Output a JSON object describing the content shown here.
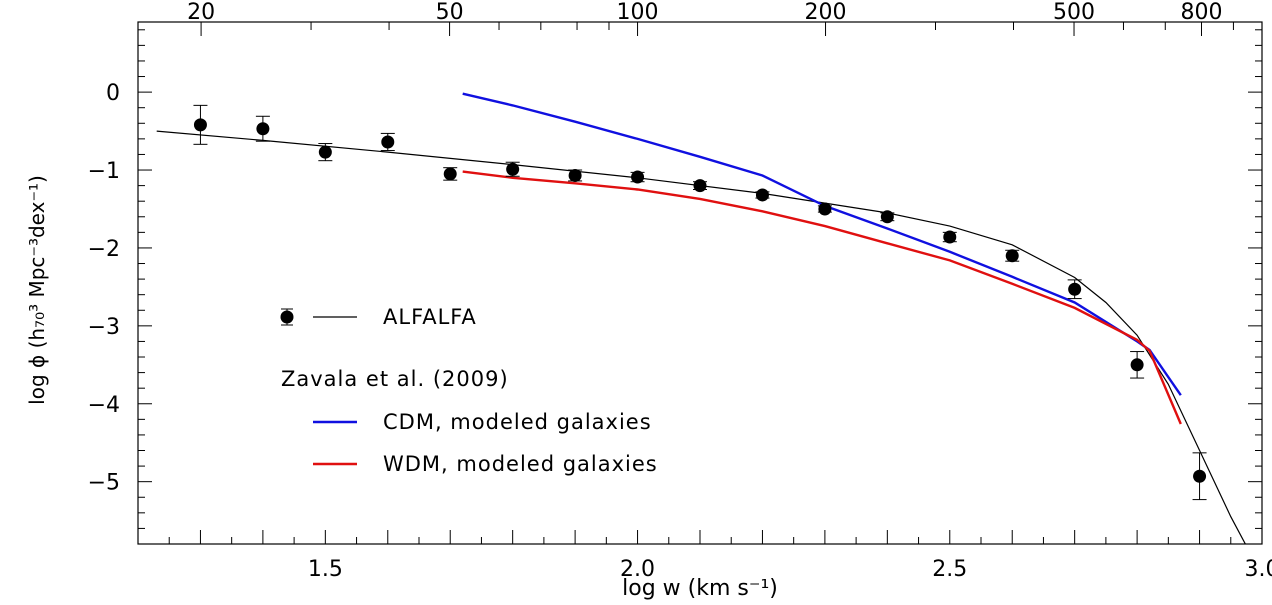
{
  "chart_data": {
    "type": "scatter",
    "title": "",
    "xlabel": "log w (km s⁻¹)",
    "ylabel": "log ϕ (h₇₀³ Mpc⁻³dex⁻¹)",
    "xlim": [
      1.2,
      3.0
    ],
    "ylim": [
      -5.8,
      0.9
    ],
    "x_ticks": [
      1.5,
      2.0,
      2.5,
      3.0
    ],
    "x_tick_labels": [
      "1.5",
      "2.0",
      "2.5",
      "3.0"
    ],
    "y_ticks": [
      0,
      -1,
      -2,
      -3,
      -4,
      -5
    ],
    "y_tick_labels": [
      "0",
      "−1",
      "−2",
      "−3",
      "−4",
      "−5"
    ],
    "top_axis": {
      "values": [
        20,
        50,
        100,
        200,
        500,
        800
      ],
      "labels": [
        "20",
        "50",
        "100",
        "200",
        "500",
        "800"
      ]
    },
    "grid": false,
    "legend_position": "left",
    "legend_group_title": "Zavala et al. (2009)",
    "series": [
      {
        "name": "ALFALFA",
        "kind": "points",
        "color": "#000000",
        "x": [
          1.3,
          1.4,
          1.5,
          1.6,
          1.7,
          1.8,
          1.9,
          2.0,
          2.1,
          2.2,
          2.3,
          2.4,
          2.5,
          2.6,
          2.7,
          2.8,
          2.9
        ],
        "y": [
          -0.42,
          -0.47,
          -0.77,
          -0.64,
          -1.05,
          -0.99,
          -1.07,
          -1.09,
          -1.2,
          -1.32,
          -1.5,
          -1.6,
          -1.86,
          -2.1,
          -2.53,
          -3.5,
          -4.93
        ],
        "yerr": [
          0.25,
          0.16,
          0.11,
          0.11,
          0.08,
          0.09,
          0.07,
          0.06,
          0.05,
          0.04,
          0.04,
          0.05,
          0.06,
          0.07,
          0.12,
          0.17,
          0.3
        ]
      },
      {
        "name": "ALFALFA",
        "kind": "fit",
        "color": "#000000",
        "x": [
          1.23,
          1.4,
          1.6,
          1.8,
          2.0,
          2.2,
          2.4,
          2.5,
          2.6,
          2.7,
          2.75,
          2.8,
          2.85,
          2.9,
          2.95,
          2.98
        ],
        "y": [
          -0.5,
          -0.62,
          -0.77,
          -0.93,
          -1.1,
          -1.3,
          -1.55,
          -1.72,
          -1.96,
          -2.38,
          -2.7,
          -3.12,
          -3.75,
          -4.6,
          -5.45,
          -5.9
        ]
      },
      {
        "name": "CDM, modeled galaxies",
        "kind": "line",
        "color": "#1010e0",
        "x": [
          1.72,
          1.8,
          1.9,
          2.0,
          2.1,
          2.2,
          2.3,
          2.4,
          2.5,
          2.6,
          2.7,
          2.8,
          2.82,
          2.87
        ],
        "y": [
          -0.02,
          -0.17,
          -0.38,
          -0.6,
          -0.83,
          -1.07,
          -1.46,
          -1.75,
          -2.05,
          -2.37,
          -2.7,
          -3.2,
          -3.31,
          -3.89
        ]
      },
      {
        "name": "WDM, modeled galaxies",
        "kind": "line",
        "color": "#e01010",
        "x": [
          1.72,
          1.8,
          1.9,
          2.0,
          2.1,
          2.2,
          2.3,
          2.4,
          2.5,
          2.6,
          2.7,
          2.8,
          2.82,
          2.87
        ],
        "y": [
          -1.02,
          -1.1,
          -1.17,
          -1.25,
          -1.37,
          -1.53,
          -1.72,
          -1.94,
          -2.16,
          -2.46,
          -2.77,
          -3.18,
          -3.32,
          -4.26
        ]
      }
    ]
  }
}
